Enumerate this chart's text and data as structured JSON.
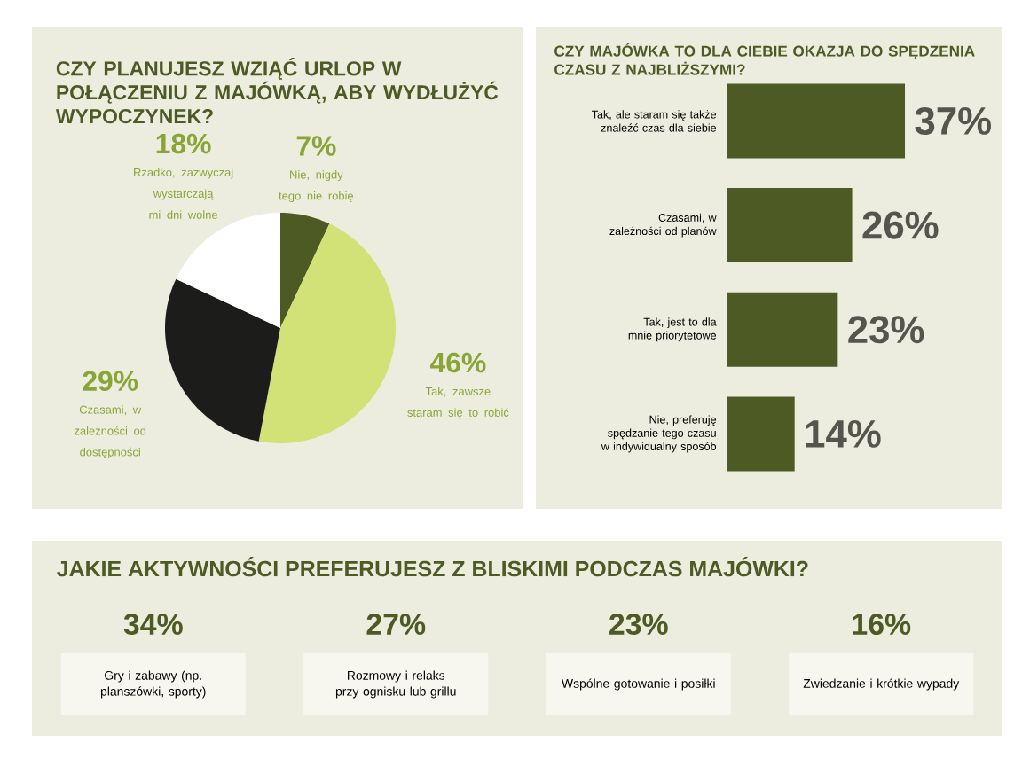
{
  "chart_data": [
    {
      "type": "pie",
      "title": "CZY PLANUJESZ WZIĄĆ URLOP W POŁĄCZENIU Z MAJÓWKĄ, ABY WYDŁUŻYĆ WYPOCZYNEK?",
      "categories": [
        "Nie, nigdy tego nie robię",
        "Tak, zawsze staram się to robić",
        "Czasami, w zależności od dostępności",
        "Rzadko, zazwyczaj wystarczają mi dni wolne"
      ],
      "values": [
        7,
        46,
        29,
        18
      ],
      "value_labels": [
        "7%",
        "46%",
        "29%",
        "18%"
      ],
      "colors": [
        "#4d5a24",
        "#d2e276",
        "#1c1c1a",
        "#ffffff"
      ]
    },
    {
      "type": "bar",
      "orientation": "horizontal",
      "title": "CZY MAJÓWKA TO DLA CIEBIE OKAZJA DO SPĘDZENIA CZASU Z NAJBLIŻSZYMI?",
      "categories": [
        "Tak, ale staram się także znaleźć czas dla siebie",
        "Czasami, w zależności od planów",
        "Tak, jest to dla mnie priorytetowe",
        "Nie, preferuję spędzanie tego czasu w indywidualny sposób"
      ],
      "values": [
        37,
        26,
        23,
        14
      ],
      "value_labels": [
        "37%",
        "26%",
        "23%",
        "14%"
      ],
      "color": "#4d5a24"
    },
    {
      "type": "other",
      "title": "JAKIE AKTYWNOŚCI PREFERUJESZ Z BLISKIMI PODCZAS MAJÓWKI?",
      "categories": [
        "Gry i zabawy (np. planszówki, sporty)",
        "Rozmowy i relaks przy ognisku lub grillu",
        "Wspólne gotowanie i posiłki",
        "Zwiedzanie i krótkie wypady"
      ],
      "values": [
        34,
        27,
        23,
        16
      ],
      "value_labels": [
        "34%",
        "27%",
        "23%",
        "16%"
      ]
    }
  ]
}
